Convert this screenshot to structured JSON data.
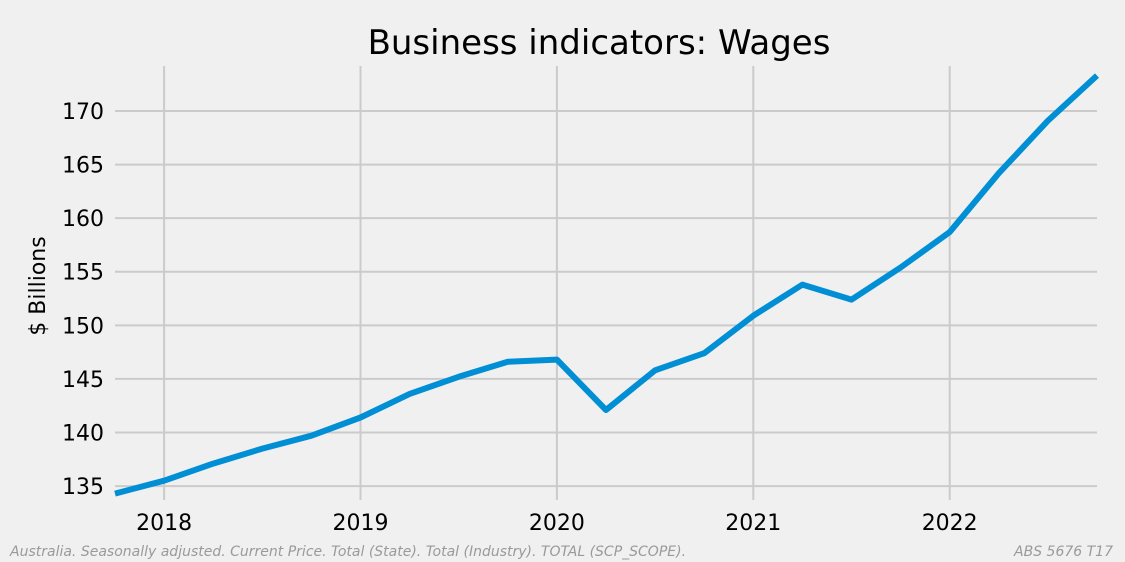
{
  "chart_data": {
    "type": "line",
    "title": "Business indicators: Wages",
    "xlabel": "",
    "ylabel": "$ Billions",
    "x_ticks": [
      "2018",
      "2019",
      "2020",
      "2021",
      "2022"
    ],
    "y_ticks": [
      135,
      140,
      145,
      150,
      155,
      160,
      165,
      170
    ],
    "ylim": [
      133.7,
      174.2
    ],
    "xlim": [
      "2017-10",
      "2022-10"
    ],
    "grid": true,
    "colors": {
      "line": "#008fd5",
      "background": "#f0f0f0",
      "grid": "#cbcbcb"
    },
    "series": [
      {
        "x": [
          "2017-10",
          "2018-01",
          "2018-04",
          "2018-07",
          "2018-10",
          "2019-01",
          "2019-04",
          "2019-07",
          "2019-10",
          "2020-01",
          "2020-04",
          "2020-07",
          "2020-10",
          "2021-01",
          "2021-04",
          "2021-07",
          "2021-10",
          "2022-01",
          "2022-04",
          "2022-07",
          "2022-10"
        ],
        "values": [
          134.3,
          135.5,
          137.1,
          138.5,
          139.7,
          141.4,
          143.6,
          145.2,
          146.6,
          146.8,
          142.1,
          145.8,
          147.4,
          150.9,
          153.8,
          152.4,
          155.4,
          158.7,
          164.2,
          169.1,
          173.3
        ]
      }
    ]
  },
  "footer": {
    "note": "Australia. Seasonally adjusted. Current Price. Total (State). Total (Industry). TOTAL (SCP_SCOPE).",
    "source": "ABS 5676 T17"
  }
}
